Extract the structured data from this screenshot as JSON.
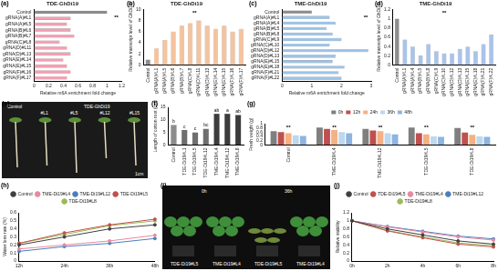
{
  "chart_data": [
    {
      "panel": "(a)",
      "type": "bar",
      "orientation": "horizontal",
      "title": "TDE-GhDi19",
      "x_label": "Relative m6A enrichment fold change",
      "categories": [
        "Control",
        "gRNA(A)#L1",
        "gRNA(A)#L5",
        "gRNA(B)#L6",
        "gRNA(B)#L7",
        "gRNA(C)#L8",
        "gRNA(D)#L11",
        "gRNA(D)#L13",
        "gRNA(E)#L14",
        "gRNA(E)#L15",
        "gRNA(F)#L16",
        "gRNA(F)#L17"
      ],
      "values": [
        1.0,
        0.5,
        0.45,
        0.5,
        0.55,
        0.35,
        0.45,
        0.5,
        0.4,
        0.45,
        0.5,
        0.45
      ],
      "colors": [
        "#8c8c8c",
        "#f2a0b2",
        "#f2a0b2",
        "#f2a0b2",
        "#f2a0b2",
        "#f2a0b2",
        "#f2a0b2",
        "#f2a0b2",
        "#f2a0b2",
        "#f2a0b2",
        "#f2a0b2",
        "#f2a0b2"
      ],
      "xlim": [
        0,
        1.2
      ],
      "xticks": [
        0,
        0.2,
        0.4,
        0.6,
        0.8,
        1,
        1.2
      ],
      "grid": false,
      "annotation": "**"
    },
    {
      "panel": "(b)",
      "type": "bar",
      "title": "TDE-GhDi19",
      "y_label": "Relative transcript level of GhDi19",
      "categories": [
        "Control",
        "gRNA(A)#L1",
        "gRNA(A)#L5",
        "gRNA(B)#L6",
        "gRNA(B)#L7",
        "gRNA(C)#L8",
        "gRNA(D)#L11",
        "gRNA(D)#L13",
        "gRNA(E)#L14",
        "gRNA(E)#L15",
        "gRNA(F)#L16",
        "gRNA(F)#L17"
      ],
      "values": [
        1,
        3,
        4.5,
        6,
        7,
        7.5,
        8,
        7,
        6.5,
        7,
        6,
        6.5
      ],
      "colors": [
        "#8c8c8c",
        "#f5c39c",
        "#f5c39c",
        "#f5c39c",
        "#f5c39c",
        "#f5c39c",
        "#f5c39c",
        "#f5c39c",
        "#f5c39c",
        "#f5c39c",
        "#f5c39c",
        "#f5c39c"
      ],
      "ylim": [
        0,
        10
      ],
      "yticks": [
        0,
        2,
        4,
        6,
        8,
        10
      ],
      "grid": false,
      "annotation": "**"
    },
    {
      "panel": "(c)",
      "type": "bar",
      "orientation": "horizontal",
      "title": "TME-GhDi19",
      "x_label": "Relative m6A enrichment fold change",
      "categories": [
        "Control",
        "gRNA(A)#L1",
        "gRNA(A)#L4",
        "gRNA(B)#L5",
        "gRNA(B)#L8",
        "gRNA(C)#L9",
        "gRNA(C)#L10",
        "gRNA(D)#L12",
        "gRNA(D)#L13",
        "gRNA(E)#L15",
        "gRNA(E)#L18",
        "gRNA(F)#L21",
        "gRNA(F)#L22"
      ],
      "values": [
        1,
        1.6,
        1.8,
        1.5,
        1.7,
        2.0,
        1.6,
        2.9,
        1.8,
        1.7,
        2.1,
        1.9,
        2.0
      ],
      "colors": [
        "#8c8c8c",
        "#9dc3e6",
        "#9dc3e6",
        "#9dc3e6",
        "#9dc3e6",
        "#9dc3e6",
        "#9dc3e6",
        "#9dc3e6",
        "#9dc3e6",
        "#9dc3e6",
        "#9dc3e6",
        "#9dc3e6",
        "#9dc3e6"
      ],
      "xlim": [
        0,
        3
      ],
      "xticks": [
        0,
        1,
        2,
        3
      ],
      "grid": false,
      "annotation": "**"
    },
    {
      "panel": "(d)",
      "type": "bar",
      "title": "TME-GhDi19",
      "y_label": "Relative transcript level of GhDi19",
      "categories": [
        "Control",
        "gRNA(A)#L1",
        "gRNA(A)#L4",
        "gRNA(B)#L5",
        "gRNA(B)#L8",
        "gRNA(C)#L9",
        "gRNA(C)#L10",
        "gRNA(D)#L12",
        "gRNA(D)#L13",
        "gRNA(E)#L15",
        "gRNA(E)#L18",
        "gRNA(F)#L21",
        "gRNA(F)#L22"
      ],
      "values": [
        1,
        0.55,
        0.4,
        0.2,
        0.45,
        0.3,
        0.25,
        0.25,
        0.35,
        0.4,
        0.3,
        0.45,
        0.65
      ],
      "colors": [
        "#8c8c8c",
        "#a9c4eb",
        "#a9c4eb",
        "#a9c4eb",
        "#a9c4eb",
        "#a9c4eb",
        "#a9c4eb",
        "#a9c4eb",
        "#a9c4eb",
        "#a9c4eb",
        "#a9c4eb",
        "#a9c4eb",
        "#a9c4eb"
      ],
      "ylim": [
        0,
        1.2
      ],
      "yticks": [
        0,
        0.2,
        0.4,
        0.6,
        0.8,
        1,
        1.2
      ],
      "grid": false,
      "annotation": "**"
    },
    {
      "panel": "(f)",
      "type": "bar",
      "y_label": "Length of cotton root (cm)",
      "categories": [
        "Control",
        "TDE-Di19#L1",
        "TDE-Di19#L5",
        "TDE-Di19#L12",
        "TME-Di19#L4",
        "TME-Di19#L12",
        "TME-Di19#L8"
      ],
      "values": [
        8,
        6,
        5,
        6.5,
        12.5,
        12.5,
        12
      ],
      "letters": [
        "b",
        "c",
        "c",
        "bc",
        "ab",
        "a",
        "ab"
      ],
      "colors": [
        "#8c8c8c",
        "#6e6e6e",
        "#6e6e6e",
        "#6e6e6e",
        "#3c3c3c",
        "#3c3c3c",
        "#3c3c3c"
      ],
      "ylim": [
        0,
        15
      ],
      "yticks": [
        0,
        5,
        10,
        15
      ],
      "grid": false
    },
    {
      "panel": "(g)",
      "type": "bar",
      "y_label": "Fresh weight (g)",
      "categories": [
        "Control",
        "TME-Di19#L4",
        "TME-Di19#L12",
        "TDE-Di19#L5",
        "TDE-Di19#L8"
      ],
      "series": [
        {
          "name": "0h",
          "color": "#7f7f7f",
          "values": [
            0.65,
            0.82,
            0.75,
            0.82,
            0.8
          ]
        },
        {
          "name": "12h",
          "color": "#c0504d",
          "values": [
            0.6,
            0.75,
            0.68,
            0.55,
            0.58
          ]
        },
        {
          "name": "24h",
          "color": "#f4b183",
          "values": [
            0.55,
            0.7,
            0.65,
            0.5,
            0.48
          ]
        },
        {
          "name": "36h",
          "color": "#bdd7ee",
          "values": [
            0.45,
            0.6,
            0.55,
            0.4,
            0.4
          ]
        },
        {
          "name": "48h",
          "color": "#8fb4de",
          "values": [
            0.42,
            0.55,
            0.5,
            0.38,
            0.38
          ]
        }
      ],
      "category_marks": [
        "**",
        "**",
        "**",
        "**",
        "**"
      ],
      "ylim": [
        0,
        1
      ],
      "yticks": [
        0,
        0.2,
        0.4,
        0.6,
        0.8,
        1
      ],
      "grid": false,
      "legend": "top"
    },
    {
      "panel": "(h)",
      "type": "line",
      "y_label": "Water loss rate (%)",
      "categories": [
        "12h",
        "24h",
        "36h",
        "48h"
      ],
      "series": [
        {
          "name": "Control",
          "color": "#404040",
          "values": [
            0.2,
            0.3,
            0.4,
            0.45
          ]
        },
        {
          "name": "TME-Di19#L4",
          "color": "#e88aa0",
          "values": [
            0.15,
            0.2,
            0.25,
            0.32
          ]
        },
        {
          "name": "TME-Di19#L12",
          "color": "#4a7ebb",
          "values": [
            0.12,
            0.18,
            0.22,
            0.28
          ]
        },
        {
          "name": "TDE-Di19#L5",
          "color": "#c0504d",
          "values": [
            0.22,
            0.35,
            0.45,
            0.52
          ]
        },
        {
          "name": "TDE-Di19#L8",
          "color": "#9bbb59",
          "values": [
            0.22,
            0.33,
            0.44,
            0.5
          ]
        }
      ],
      "marker": "circle",
      "ylim": [
        0,
        0.6
      ],
      "yticks": [
        0,
        0.1,
        0.2,
        0.3,
        0.4,
        0.5,
        0.6
      ],
      "grid": false,
      "legend": "top"
    },
    {
      "panel": "(j)",
      "type": "line",
      "y_label": "Relative stability",
      "categories": [
        "0h",
        "2h",
        "4h",
        "6h",
        "8h"
      ],
      "series": [
        {
          "name": "Control",
          "color": "#404040",
          "values": [
            1,
            0.8,
            0.65,
            0.5,
            0.42
          ]
        },
        {
          "name": "TDE-Di19#L5",
          "color": "#c0504d",
          "values": [
            1,
            0.75,
            0.58,
            0.42,
            0.35
          ]
        },
        {
          "name": "TME-Di19#L4",
          "color": "#e88aa0",
          "values": [
            1,
            0.85,
            0.72,
            0.6,
            0.52
          ]
        },
        {
          "name": "TME-Di19#L12",
          "color": "#4a7ebb",
          "values": [
            1,
            0.86,
            0.74,
            0.62,
            0.55
          ]
        },
        {
          "name": "TDE-Di19#L8",
          "color": "#9bbb59",
          "values": [
            1,
            0.76,
            0.6,
            0.45,
            0.38
          ]
        }
      ],
      "marker": "circle",
      "ylim": [
        0,
        1.2
      ],
      "yticks": [
        0,
        0.2,
        0.4,
        0.6,
        0.8,
        1,
        1.2
      ],
      "grid": false,
      "legend": "top"
    }
  ],
  "photos": [
    {
      "panel": "(e)",
      "top_labels": [
        "Control",
        "TDE-GhDi19"
      ],
      "plant_labels": [
        "#L1",
        "#L5",
        "#L12",
        "#L15"
      ],
      "scale": "1cm"
    },
    {
      "panel": "(i)",
      "top_labels": [
        "0h",
        "36h"
      ],
      "bottom_labels": [
        "TDE-Di19#L5",
        "TME-Di19#L4",
        "TDE-Di19#L5",
        "TME-Di19#L4"
      ]
    }
  ]
}
